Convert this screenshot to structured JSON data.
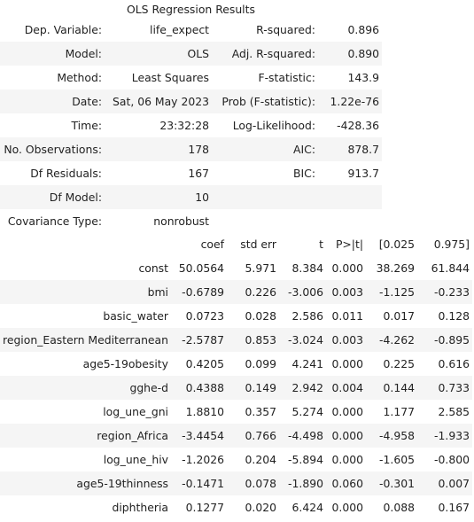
{
  "caption": "OLS Regression Results",
  "summary_rows": [
    [
      "Dep. Variable:",
      "life_expect",
      "R-squared:",
      "0.896"
    ],
    [
      "Model:",
      "OLS",
      "Adj. R-squared:",
      "0.890"
    ],
    [
      "Method:",
      "Least Squares",
      "F-statistic:",
      "143.9"
    ],
    [
      "Date:",
      "Sat, 06 May 2023",
      "Prob (F-statistic):",
      "1.22e-76"
    ],
    [
      "Time:",
      "23:32:28",
      "Log-Likelihood:",
      "-428.36"
    ],
    [
      "No. Observations:",
      "178",
      "AIC:",
      "878.7"
    ],
    [
      "Df Residuals:",
      "167",
      "BIC:",
      "913.7"
    ],
    [
      "Df Model:",
      "10",
      "",
      ""
    ],
    [
      "Covariance Type:",
      "nonrobust",
      "",
      ""
    ]
  ],
  "coef_headers": [
    "",
    "coef",
    "std err",
    "t",
    "P>|t|",
    "[0.025",
    "0.975]"
  ],
  "coef_rows": [
    [
      "const",
      "50.0564",
      "5.971",
      "8.384",
      "0.000",
      "38.269",
      "61.844"
    ],
    [
      "bmi",
      "-0.6789",
      "0.226",
      "-3.006",
      "0.003",
      "-1.125",
      "-0.233"
    ],
    [
      "basic_water",
      "0.0723",
      "0.028",
      "2.586",
      "0.011",
      "0.017",
      "0.128"
    ],
    [
      "region_Eastern Mediterranean",
      "-2.5787",
      "0.853",
      "-3.024",
      "0.003",
      "-4.262",
      "-0.895"
    ],
    [
      "age5-19obesity",
      "0.4205",
      "0.099",
      "4.241",
      "0.000",
      "0.225",
      "0.616"
    ],
    [
      "gghe-d",
      "0.4388",
      "0.149",
      "2.942",
      "0.004",
      "0.144",
      "0.733"
    ],
    [
      "log_une_gni",
      "1.8810",
      "0.357",
      "5.274",
      "0.000",
      "1.177",
      "2.585"
    ],
    [
      "region_Africa",
      "-3.4454",
      "0.766",
      "-4.498",
      "0.000",
      "-4.958",
      "-1.933"
    ],
    [
      "log_une_hiv",
      "-1.2026",
      "0.204",
      "-5.894",
      "0.000",
      "-1.605",
      "-0.800"
    ],
    [
      "age5-19thinness",
      "-0.1471",
      "0.078",
      "-1.890",
      "0.060",
      "-0.301",
      "0.007"
    ],
    [
      "diphtheria",
      "0.1277",
      "0.020",
      "6.424",
      "0.000",
      "0.088",
      "0.167"
    ]
  ]
}
